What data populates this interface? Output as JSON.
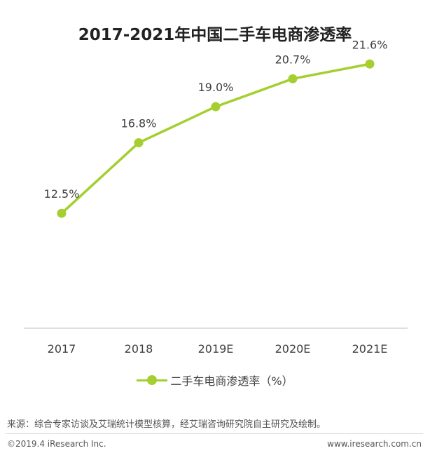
{
  "chart_data": {
    "type": "line",
    "title": "2017-2021年中国二手车电商渗透率",
    "categories": [
      "2017",
      "2018",
      "2019E",
      "2020E",
      "2021E"
    ],
    "series": [
      {
        "name": "二手车电商渗透率（%）",
        "values": [
          12.5,
          16.8,
          19.0,
          20.7,
          21.6
        ],
        "labels": [
          "12.5%",
          "16.8%",
          "19.0%",
          "20.7%",
          "21.6%"
        ],
        "color": "#a4cf2e"
      }
    ],
    "ylim": [
      5.5,
      25.5
    ],
    "xlabel": "",
    "ylabel": "",
    "grid": false,
    "legend_position": "bottom"
  },
  "footer": {
    "source": "来源：综合专家访谈及艾瑞统计模型核算，经艾瑞咨询研究院自主研究及绘制。",
    "copyright": "©2019.4 iResearch Inc.",
    "website": "www.iresearch.com.cn"
  }
}
